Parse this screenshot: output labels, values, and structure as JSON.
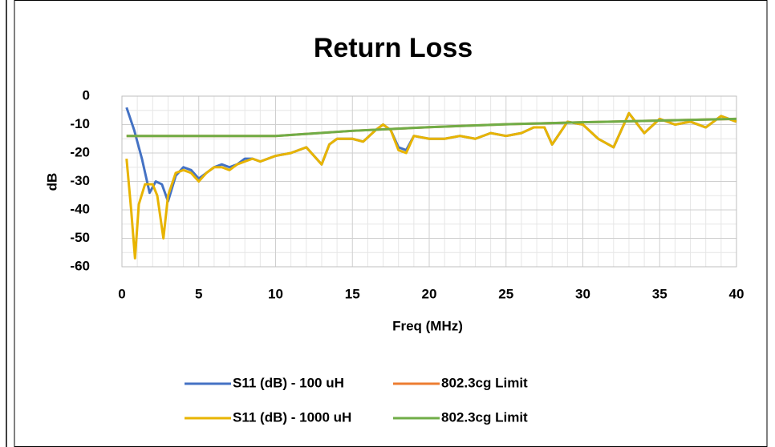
{
  "chart_data": {
    "type": "line",
    "title": "Return Loss",
    "x_label": "Freq (MHz)",
    "y_label": "dB",
    "xlim": [
      0,
      40
    ],
    "xticks": [
      0,
      5,
      10,
      15,
      20,
      25,
      30,
      35,
      40
    ],
    "ylim": [
      -60,
      0
    ],
    "yticks": [
      0,
      -10,
      -20,
      -30,
      -40,
      -50,
      -60
    ],
    "grid": true,
    "minor_grid": true,
    "legend": "bottom",
    "series": [
      {
        "name": "S11 (dB) - 100 uH",
        "color": "#4472c4",
        "x": [
          0.3,
          0.8,
          1.3,
          1.8,
          2.2,
          2.6,
          3,
          3.5,
          4,
          4.5,
          5,
          5.5,
          6,
          6.5,
          7,
          7.5,
          8,
          8.5,
          9,
          10,
          11,
          12,
          13,
          13.5,
          14,
          15,
          15.7,
          16.5,
          17,
          17.5,
          18,
          18.5,
          19,
          20,
          21,
          22,
          23,
          24,
          25,
          26,
          26.8,
          27.5,
          28,
          29,
          30,
          31,
          32,
          33,
          34,
          35,
          36,
          37,
          38,
          39,
          40
        ],
        "values": [
          -4,
          -12,
          -22,
          -34,
          -30,
          -31,
          -37,
          -28,
          -25,
          -26,
          -29,
          -27,
          -25,
          -24,
          -25,
          -24,
          -22,
          -22,
          -23,
          -21,
          -20,
          -18,
          -24,
          -17,
          -15,
          -15,
          -16,
          -12,
          -10,
          -12,
          -18,
          -19,
          -14,
          -15,
          -15,
          -14,
          -15,
          -13,
          -14,
          -13,
          -11,
          -11,
          -17,
          -9,
          -10,
          -15,
          -18,
          -6,
          -13,
          -8,
          -10,
          -9,
          -11,
          -7,
          -9
        ]
      },
      {
        "name": "802.3cg Limit",
        "color": "#ed7d31",
        "x": [
          0.3,
          10,
          15,
          20,
          25,
          30,
          35,
          40
        ],
        "values": [
          -14,
          -14,
          -12.2,
          -10.9,
          -9.9,
          -9.2,
          -8.6,
          -8
        ]
      },
      {
        "name": "S11 (dB) - 1000 uH",
        "color": "#e8b400",
        "x": [
          0.3,
          0.6,
          0.85,
          1.1,
          1.5,
          2,
          2.3,
          2.7,
          3,
          3.5,
          4,
          4.5,
          5,
          5.5,
          6,
          6.5,
          7,
          7.5,
          8,
          8.5,
          9,
          10,
          11,
          12,
          13,
          13.5,
          14,
          15,
          15.7,
          16.5,
          17,
          17.5,
          18,
          18.5,
          19,
          20,
          21,
          22,
          23,
          24,
          25,
          26,
          26.8,
          27.5,
          28,
          29,
          30,
          31,
          32,
          33,
          34,
          35,
          36,
          37,
          38,
          39,
          40
        ],
        "values": [
          -22,
          -40,
          -57,
          -38,
          -31,
          -31,
          -35,
          -50,
          -35,
          -27,
          -26,
          -27,
          -30,
          -27,
          -25,
          -25,
          -26,
          -24,
          -23,
          -22,
          -23,
          -21,
          -20,
          -18,
          -24,
          -17,
          -15,
          -15,
          -16,
          -12,
          -10,
          -12,
          -19,
          -20,
          -14,
          -15,
          -15,
          -14,
          -15,
          -13,
          -14,
          -13,
          -11,
          -11,
          -17,
          -9,
          -10,
          -15,
          -18,
          -6,
          -13,
          -8,
          -10,
          -9,
          -11,
          -7,
          -9
        ]
      },
      {
        "name": "802.3cg Limit",
        "color": "#70ad47",
        "x": [
          0.3,
          10,
          15,
          20,
          25,
          30,
          35,
          40
        ],
        "values": [
          -14,
          -14,
          -12.2,
          -10.9,
          -9.9,
          -9.2,
          -8.6,
          -8
        ]
      }
    ]
  }
}
